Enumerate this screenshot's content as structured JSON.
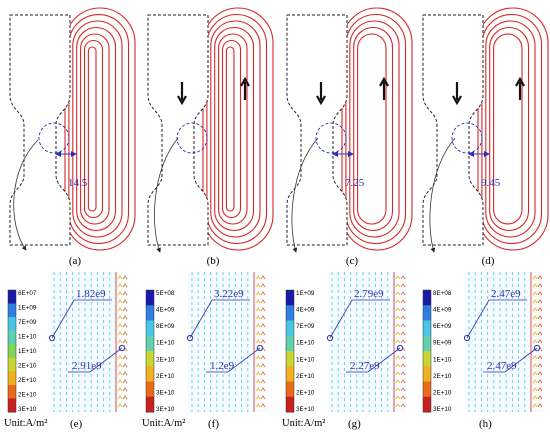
{
  "panels": [
    {
      "label": "(a)",
      "dimension": "14.5"
    },
    {
      "label": "(b)",
      "dimension": ""
    },
    {
      "label": "(c)",
      "dimension": "7.25"
    },
    {
      "label": "(d)",
      "dimension": "9.45"
    }
  ],
  "colorbars": [
    {
      "ticks": [
        "6E+07",
        "1E+09",
        "7E+09",
        "1E+10",
        "1E+10",
        "2E+10",
        "2E+10",
        "2E+10",
        "3E+10"
      ]
    },
    {
      "ticks": [
        "5E+08",
        "4E+09",
        "8E+09",
        "1E+10",
        "2E+10",
        "2E+10",
        "3E+10",
        "3E+10"
      ]
    },
    {
      "ticks": [
        "1E+09",
        "4E+09",
        "7E+09",
        "1E+10",
        "1E+10",
        "2E+10",
        "2E+10",
        "3E+10"
      ]
    },
    {
      "ticks": [
        "8E+08",
        "4E+09",
        "6E+09",
        "9E+09",
        "1E+10",
        "2E+10",
        "2E+10",
        "3E+10"
      ]
    }
  ],
  "zoom": [
    {
      "label": "(e)",
      "top_value": "1.82e9",
      "bottom_value": "2.91e9",
      "unit": "Unit:A/m²"
    },
    {
      "label": "(f)",
      "top_value": "3.22e9",
      "bottom_value": "1.2e9",
      "unit": "Unit:A/m²"
    },
    {
      "label": "(g)",
      "top_value": "2.79e9",
      "bottom_value": "2.27e9",
      "unit": "Unit:A/m²"
    },
    {
      "label": "(h)",
      "top_value": "2.47e9",
      "bottom_value": "2.47e9",
      "unit": ""
    }
  ],
  "colors": {
    "coil_red": "#d62828",
    "annotation_blue": "#2b2fb8",
    "colormap": [
      "#1a1aa8",
      "#2f7fe0",
      "#49c6e6",
      "#5fd0b0",
      "#7fd65a",
      "#c8d634",
      "#f0b020",
      "#e86a1a",
      "#c82020"
    ]
  }
}
